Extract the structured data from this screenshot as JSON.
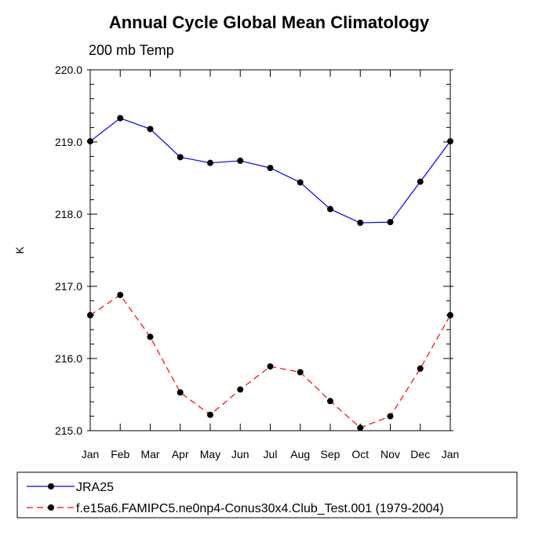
{
  "chart_data": {
    "type": "line",
    "title": "Annual Cycle Global Mean Climatology",
    "subtitle": "200 mb Temp",
    "xlabel": "",
    "ylabel": "K",
    "categories": [
      "Jan",
      "Feb",
      "Mar",
      "Apr",
      "May",
      "Jun",
      "Jul",
      "Aug",
      "Sep",
      "Oct",
      "Nov",
      "Dec",
      "Jan"
    ],
    "ylim": [
      215.0,
      220.0
    ],
    "yticks": [
      "215.0",
      "216.0",
      "217.0",
      "218.0",
      "219.0",
      "220.0"
    ],
    "legend_position": "bottom",
    "series": [
      {
        "name": "JRA25",
        "color": "#0000ff",
        "dash": "solid",
        "values": [
          219.01,
          219.33,
          219.18,
          218.79,
          218.71,
          218.74,
          218.64,
          218.44,
          218.07,
          217.88,
          217.89,
          218.45,
          219.01
        ]
      },
      {
        "name": "f.e15a6.FAMIPC5.ne0np4-Conus30x4.Club_Test.001 (1979-2004)",
        "color": "#ff0000",
        "dash": "dashed",
        "values": [
          216.6,
          216.88,
          216.3,
          215.53,
          215.22,
          215.57,
          215.89,
          215.81,
          215.41,
          215.04,
          215.2,
          215.86,
          216.6
        ]
      }
    ]
  }
}
